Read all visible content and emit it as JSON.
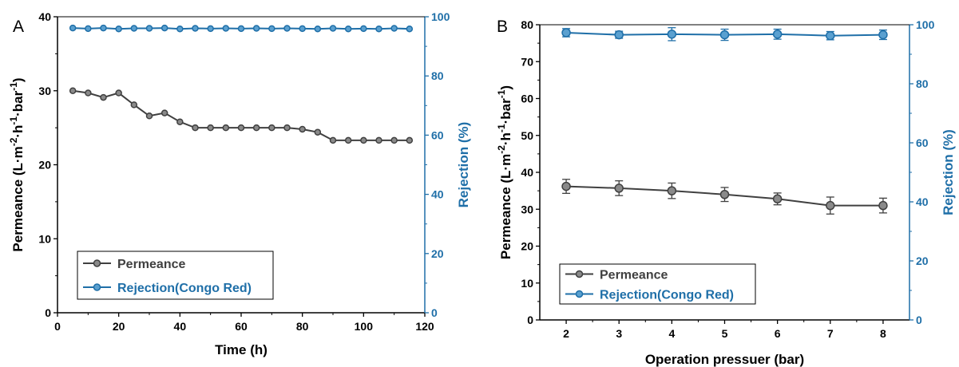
{
  "colors": {
    "permeance": "#404040",
    "rejection": "#1f6fa8",
    "axis": "#000000",
    "rejection_axis": "#1f6fa8"
  },
  "chart_data": [
    {
      "panel_label": "A",
      "type": "line",
      "xlabel": "Time (h)",
      "ylabel_left_parts": [
        "Permeance (L·m",
        "-2",
        "·h",
        "-1",
        "·bar",
        "-1",
        ")"
      ],
      "ylabel_right": "Rejection (%)",
      "xlim": [
        0,
        120
      ],
      "ylim_left": [
        0,
        40
      ],
      "ylim_right": [
        0,
        100
      ],
      "x_ticks": [
        "0",
        "20",
        "40",
        "60",
        "80",
        "100",
        "120"
      ],
      "y_left_ticks": [
        "0",
        "10",
        "20",
        "30",
        "40"
      ],
      "y_right_ticks": [
        "0",
        "20",
        "40",
        "60",
        "80",
        "100"
      ],
      "legend": [
        "Permeance",
        "Rejection(Congo Red)"
      ],
      "legend_position": "bottom-left",
      "series": [
        {
          "name": "Permeance",
          "axis": "left",
          "x": [
            5,
            10,
            15,
            20,
            25,
            30,
            35,
            40,
            45,
            50,
            55,
            60,
            65,
            70,
            75,
            80,
            85,
            90,
            95,
            100,
            105,
            110,
            115
          ],
          "y": [
            30.0,
            29.7,
            29.1,
            29.7,
            28.1,
            26.6,
            27.0,
            25.8,
            25.0,
            25.0,
            25.0,
            25.0,
            25.0,
            25.0,
            25.0,
            24.8,
            24.4,
            23.3,
            23.3,
            23.3,
            23.3,
            23.3,
            23.3
          ]
        },
        {
          "name": "Rejection(Congo Red)",
          "axis": "right",
          "x": [
            5,
            10,
            15,
            20,
            25,
            30,
            35,
            40,
            45,
            50,
            55,
            60,
            65,
            70,
            75,
            80,
            85,
            90,
            95,
            100,
            105,
            110,
            115
          ],
          "y": [
            96.2,
            96.0,
            96.2,
            95.9,
            96.1,
            96.1,
            96.2,
            95.9,
            96.1,
            96.0,
            96.1,
            96.0,
            96.1,
            96.0,
            96.1,
            96.0,
            95.9,
            96.1,
            95.9,
            96.0,
            95.9,
            96.1,
            95.9
          ]
        }
      ]
    },
    {
      "panel_label": "B",
      "type": "line",
      "xlabel": "Operation pressuer (bar)",
      "ylabel_left_parts": [
        "Permeance (L·m",
        "-2",
        "·h",
        "-1",
        "·bar",
        "-1",
        ")"
      ],
      "ylabel_right": "Rejection (%)",
      "xlim": [
        1.5,
        8.5
      ],
      "ylim_left": [
        0,
        80
      ],
      "ylim_right": [
        0,
        100
      ],
      "x_ticks": [
        "2",
        "3",
        "4",
        "5",
        "6",
        "7",
        "8"
      ],
      "y_left_ticks": [
        "0",
        "10",
        "20",
        "30",
        "40",
        "50",
        "60",
        "70",
        "80"
      ],
      "y_right_ticks": [
        "0",
        "20",
        "40",
        "60",
        "80",
        "100"
      ],
      "legend": [
        "Permeance",
        "Rejection(Congo Red)"
      ],
      "legend_position": "bottom-left",
      "series": [
        {
          "name": "Permeance",
          "axis": "left",
          "x": [
            2,
            3,
            4,
            5,
            6,
            7,
            8
          ],
          "y": [
            36.2,
            35.7,
            35.0,
            34.0,
            32.8,
            31.0,
            31.0
          ],
          "error": [
            1.9,
            2.0,
            2.1,
            1.9,
            1.6,
            2.3,
            2.0
          ]
        },
        {
          "name": "Rejection(Congo Red)",
          "axis": "right",
          "x": [
            2,
            3,
            4,
            5,
            6,
            7,
            8
          ],
          "y": [
            97.3,
            96.6,
            96.8,
            96.6,
            96.8,
            96.3,
            96.6
          ],
          "error": [
            1.4,
            1.2,
            2.2,
            1.9,
            1.7,
            1.4,
            1.6
          ]
        }
      ]
    }
  ]
}
